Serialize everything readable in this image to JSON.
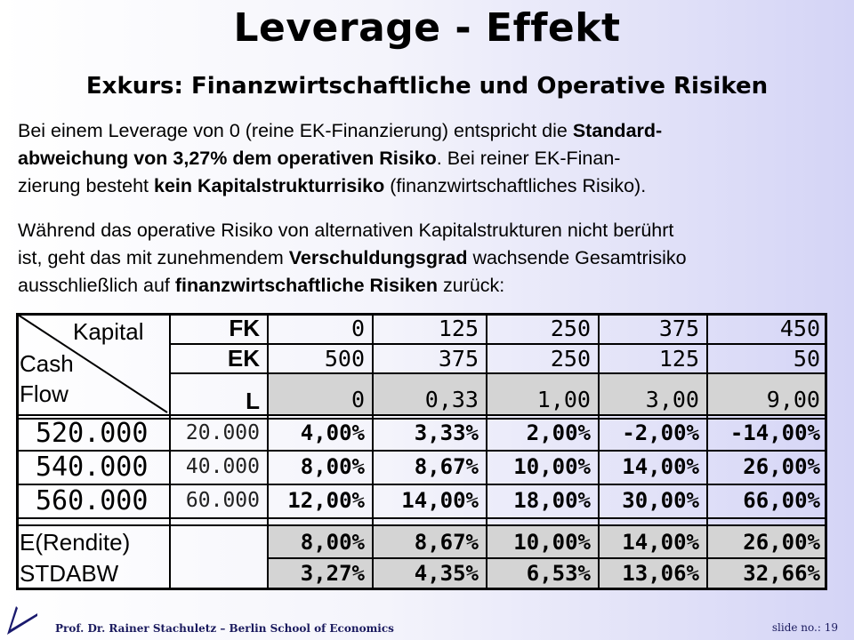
{
  "title": "Leverage - Effekt",
  "subtitle": "Exkurs: Finanzwirtschaftliche und Operative Risiken",
  "para1": {
    "t1": "Bei einem Leverage von 0 (reine EK-Finanzierung) entspricht die ",
    "b1": "Standard-",
    "b2": "abweichung von 3,27% dem operativen Risiko",
    "t2": ". Bei reiner EK-Finan-",
    "t3": "zierung besteht ",
    "b3": "kein Kapitalstrukturrisiko",
    "t4": " (finanzwirtschaftliches Risiko)."
  },
  "para2": {
    "t1": "Während das operative Risiko von alternativen Kapitalstrukturen nicht berührt",
    "t2": "ist, geht das mit zunehmendem ",
    "b1": "Verschuldungsgrad",
    "t3": " wachsende Gesamtrisiko",
    "t4": "ausschließlich auf ",
    "b2": "finanzwirtschaftliche Risiken",
    "t5": " zurück:"
  },
  "table": {
    "corner": {
      "kapital": "Kapital",
      "cash": "Cash",
      "flow": "Flow"
    },
    "row_labels": {
      "fk": "FK",
      "ek": "EK",
      "l": "L"
    },
    "fk": [
      "0",
      "125",
      "250",
      "375",
      "450"
    ],
    "ek": [
      "500",
      "375",
      "250",
      "125",
      "50"
    ],
    "l": [
      "0",
      "0,33",
      "1,00",
      "3,00",
      "9,00"
    ],
    "rows": [
      {
        "cf": "520.000",
        "ek_ret": "20.000",
        "vals": [
          "4,00%",
          "3,33%",
          "2,00%",
          "-2,00%",
          "-14,00%"
        ]
      },
      {
        "cf": "540.000",
        "ek_ret": "40.000",
        "vals": [
          "8,00%",
          "8,67%",
          "10,00%",
          "14,00%",
          "26,00%"
        ]
      },
      {
        "cf": "560.000",
        "ek_ret": "60.000",
        "vals": [
          "12,00%",
          "14,00%",
          "18,00%",
          "30,00%",
          "66,00%"
        ]
      }
    ],
    "erwartet": {
      "label": "E(Rendite)",
      "vals": [
        "8,00%",
        "8,67%",
        "10,00%",
        "14,00%",
        "26,00%"
      ]
    },
    "stdabw": {
      "label": "STDABW",
      "vals": [
        "3,27%",
        "4,35%",
        "6,53%",
        "13,06%",
        "32,66%"
      ]
    }
  },
  "footer": {
    "author": "Prof. Dr. Rainer Stachuletz – Berlin School of Economics",
    "slide_no": "slide no.: 19"
  }
}
